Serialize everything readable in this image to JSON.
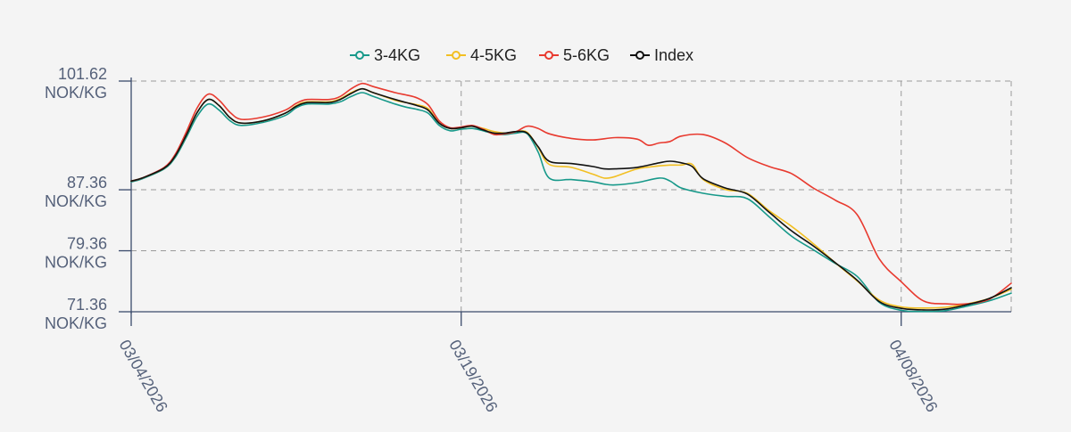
{
  "chart_data": {
    "type": "line",
    "title": "",
    "xlabel": "",
    "ylabel": "",
    "x_ticks": [
      "03/04/2026",
      "03/19/2026",
      "04/08/2026"
    ],
    "y_ticks": [
      {
        "value": 101.62,
        "line1": "101.62",
        "line2": "NOK/KG"
      },
      {
        "value": 87.36,
        "line1": "87.36",
        "line2": "NOK/KG"
      },
      {
        "value": 79.36,
        "line1": "79.36",
        "line2": "NOK/KG"
      },
      {
        "value": 71.36,
        "line1": "71.36",
        "line2": "NOK/KG"
      }
    ],
    "ylim": [
      71.36,
      101.62
    ],
    "x_range_days": [
      0,
      38
    ],
    "grid": true,
    "legend_position": "top-center",
    "series": [
      {
        "name": "3-4KG",
        "color": "#17998a",
        "points": [
          [
            0,
            88.4
          ],
          [
            0.5,
            88.8
          ],
          [
            1.5,
            90.1
          ],
          [
            2,
            91.6
          ],
          [
            2.5,
            94.2
          ],
          [
            3,
            97
          ],
          [
            3.5,
            98.6
          ],
          [
            4,
            97.8
          ],
          [
            4.5,
            96.4
          ],
          [
            5,
            95.8
          ],
          [
            6,
            96.2
          ],
          [
            7,
            97.1
          ],
          [
            7.5,
            98.1
          ],
          [
            8,
            98.6
          ],
          [
            9,
            98.6
          ],
          [
            9.5,
            98.9
          ],
          [
            10,
            99.6
          ],
          [
            10.5,
            100.1
          ],
          [
            11,
            99.6
          ],
          [
            12,
            98.6
          ],
          [
            12.5,
            98.2
          ],
          [
            13,
            97.9
          ],
          [
            13.5,
            97.4
          ],
          [
            14,
            95.8
          ],
          [
            14.5,
            95.1
          ],
          [
            15,
            95.3
          ],
          [
            15.5,
            95.4
          ],
          [
            16,
            95.1
          ],
          [
            16.5,
            94.7
          ],
          [
            17,
            94.6
          ],
          [
            17.5,
            94.8
          ],
          [
            18,
            94.7
          ],
          [
            18.5,
            92.3
          ],
          [
            19,
            88.9
          ],
          [
            20,
            88.7
          ],
          [
            21,
            88.4
          ],
          [
            21.5,
            88.1
          ],
          [
            22,
            88.0
          ],
          [
            23,
            88.3
          ],
          [
            24,
            88.9
          ],
          [
            24.5,
            88.5
          ],
          [
            25,
            87.6
          ],
          [
            26,
            86.9
          ],
          [
            27,
            86.5
          ],
          [
            28,
            86.2
          ],
          [
            29,
            83.8
          ],
          [
            30,
            81.3
          ],
          [
            31,
            79.5
          ],
          [
            32,
            77.7
          ],
          [
            33,
            76.0
          ],
          [
            34,
            72.6
          ],
          [
            35,
            71.55
          ],
          [
            36,
            71.4
          ],
          [
            37,
            71.5
          ],
          [
            38,
            72.1
          ],
          [
            39,
            72.8
          ],
          [
            40,
            73.8
          ]
        ]
      },
      {
        "name": "4-5KG",
        "color": "#f2bf22",
        "points": [
          [
            0,
            88.5
          ],
          [
            0.5,
            88.9
          ],
          [
            1.5,
            90.2
          ],
          [
            2,
            91.8
          ],
          [
            2.5,
            94.5
          ],
          [
            3,
            97.5
          ],
          [
            3.5,
            99.2
          ],
          [
            4,
            98.4
          ],
          [
            4.5,
            96.8
          ],
          [
            5,
            96.1
          ],
          [
            6,
            96.4
          ],
          [
            7,
            97.4
          ],
          [
            7.5,
            98.4
          ],
          [
            8,
            98.9
          ],
          [
            9,
            98.9
          ],
          [
            9.5,
            99.3
          ],
          [
            10,
            100.1
          ],
          [
            10.5,
            100.6
          ],
          [
            11,
            100.1
          ],
          [
            12,
            99.1
          ],
          [
            12.5,
            98.8
          ],
          [
            13,
            98.5
          ],
          [
            13.5,
            98.0
          ],
          [
            14,
            96.1
          ],
          [
            14.5,
            95.4
          ],
          [
            15,
            95.5
          ],
          [
            15.5,
            95.7
          ],
          [
            16,
            95.4
          ],
          [
            16.5,
            95.0
          ],
          [
            17,
            94.8
          ],
          [
            17.5,
            95.0
          ],
          [
            18,
            94.9
          ],
          [
            18.5,
            92.9
          ],
          [
            19,
            90.7
          ],
          [
            20,
            90.3
          ],
          [
            21,
            89.4
          ],
          [
            21.5,
            88.9
          ],
          [
            22,
            89.1
          ],
          [
            23,
            90.1
          ],
          [
            24,
            90.5
          ],
          [
            24.5,
            90.6
          ],
          [
            25,
            90.6
          ],
          [
            25.5,
            90.7
          ],
          [
            26,
            88.7
          ],
          [
            27,
            87.4
          ],
          [
            28,
            86.9
          ],
          [
            29,
            84.6
          ],
          [
            30,
            82.6
          ],
          [
            31,
            80.3
          ],
          [
            32,
            77.8
          ],
          [
            33,
            75.4
          ],
          [
            34,
            72.9
          ],
          [
            35,
            72.0
          ],
          [
            36,
            71.85
          ],
          [
            37,
            71.95
          ],
          [
            38,
            72.4
          ],
          [
            39,
            73.1
          ],
          [
            40,
            74.3
          ]
        ]
      },
      {
        "name": "5-6KG",
        "color": "#e83a2f",
        "points": [
          [
            0,
            88.5
          ],
          [
            0.5,
            88.9
          ],
          [
            1.5,
            90.3
          ],
          [
            2,
            92.0
          ],
          [
            2.5,
            94.9
          ],
          [
            3,
            98.1
          ],
          [
            3.5,
            99.9
          ],
          [
            4,
            99.1
          ],
          [
            4.5,
            97.5
          ],
          [
            5,
            96.6
          ],
          [
            6,
            96.9
          ],
          [
            7,
            97.8
          ],
          [
            7.5,
            98.7
          ],
          [
            8,
            99.2
          ],
          [
            9,
            99.2
          ],
          [
            9.5,
            99.6
          ],
          [
            10,
            100.6
          ],
          [
            10.5,
            101.3
          ],
          [
            11,
            100.9
          ],
          [
            12,
            100.1
          ],
          [
            12.5,
            99.8
          ],
          [
            13,
            99.4
          ],
          [
            13.5,
            98.5
          ],
          [
            14,
            96.4
          ],
          [
            14.5,
            95.5
          ],
          [
            15,
            95.6
          ],
          [
            15.5,
            95.8
          ],
          [
            16,
            95.3
          ],
          [
            16.5,
            94.6
          ],
          [
            17,
            94.7
          ],
          [
            17.5,
            95.0
          ],
          [
            18,
            95.7
          ],
          [
            18.5,
            95.4
          ],
          [
            19,
            94.7
          ],
          [
            20,
            94.1
          ],
          [
            21,
            93.9
          ],
          [
            22,
            94.2
          ],
          [
            23,
            94.0
          ],
          [
            23.5,
            93.2
          ],
          [
            24,
            93.5
          ],
          [
            24.5,
            93.7
          ],
          [
            25,
            94.4
          ],
          [
            26,
            94.6
          ],
          [
            27,
            93.5
          ],
          [
            28,
            91.6
          ],
          [
            29,
            90.4
          ],
          [
            30,
            89.5
          ],
          [
            31,
            87.6
          ],
          [
            32,
            86.0
          ],
          [
            33,
            84.1
          ],
          [
            34,
            78.3
          ],
          [
            35,
            75.3
          ],
          [
            36,
            72.8
          ],
          [
            37,
            72.4
          ],
          [
            38,
            72.4
          ],
          [
            39,
            73.0
          ],
          [
            40,
            75.1
          ]
        ]
      },
      {
        "name": "Index",
        "color": "#111111",
        "points": [
          [
            0,
            88.5
          ],
          [
            0.5,
            88.9
          ],
          [
            1.5,
            90.2
          ],
          [
            2,
            91.8
          ],
          [
            2.5,
            94.5
          ],
          [
            3,
            97.5
          ],
          [
            3.5,
            99.2
          ],
          [
            4,
            98.4
          ],
          [
            4.5,
            96.8
          ],
          [
            5,
            96.1
          ],
          [
            6,
            96.4
          ],
          [
            7,
            97.4
          ],
          [
            7.5,
            98.3
          ],
          [
            8,
            98.8
          ],
          [
            9,
            98.8
          ],
          [
            9.5,
            99.2
          ],
          [
            10,
            100.0
          ],
          [
            10.5,
            100.6
          ],
          [
            11,
            100.1
          ],
          [
            12,
            99.2
          ],
          [
            12.5,
            98.8
          ],
          [
            13,
            98.4
          ],
          [
            13.5,
            97.8
          ],
          [
            14,
            96.1
          ],
          [
            14.5,
            95.4
          ],
          [
            15,
            95.5
          ],
          [
            15.5,
            95.7
          ],
          [
            16,
            95.2
          ],
          [
            16.5,
            94.8
          ],
          [
            17,
            94.8
          ],
          [
            17.5,
            95.0
          ],
          [
            18,
            94.8
          ],
          [
            18.5,
            93.0
          ],
          [
            19,
            91.1
          ],
          [
            20,
            90.8
          ],
          [
            21,
            90.4
          ],
          [
            21.5,
            90.1
          ],
          [
            22,
            90.1
          ],
          [
            23,
            90.3
          ],
          [
            24,
            90.9
          ],
          [
            24.5,
            91.1
          ],
          [
            25,
            90.9
          ],
          [
            25.5,
            90.4
          ],
          [
            26,
            88.8
          ],
          [
            27,
            87.6
          ],
          [
            28,
            86.8
          ],
          [
            29,
            84.4
          ],
          [
            30,
            82.0
          ],
          [
            31,
            80.0
          ],
          [
            32,
            77.8
          ],
          [
            33,
            75.5
          ],
          [
            34,
            72.7
          ],
          [
            35,
            71.8
          ],
          [
            36,
            71.6
          ],
          [
            37,
            71.7
          ],
          [
            38,
            72.3
          ],
          [
            39,
            73.1
          ],
          [
            40,
            74.5
          ]
        ]
      }
    ]
  }
}
